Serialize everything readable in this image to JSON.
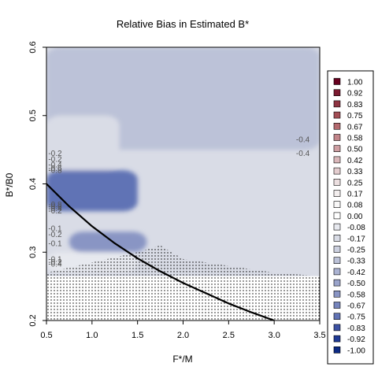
{
  "chart_data": {
    "type": "heatmap",
    "title": "Relative Bias in Estimated B*",
    "xlabel": "F*/M",
    "ylabel": "B*/B0",
    "xlim": [
      0.5,
      3.5
    ],
    "ylim": [
      0.2,
      0.6
    ],
    "x_ticks": [
      "0.5",
      "1.0",
      "1.5",
      "2.0",
      "2.5",
      "3.0",
      "3.5"
    ],
    "y_ticks": [
      "0.2",
      "0.3",
      "0.4",
      "0.5",
      "0.6"
    ],
    "grid": false,
    "legend_position": "right",
    "legend": [
      {
        "label": "1.00",
        "color": "#67001f"
      },
      {
        "label": "0.92",
        "color": "#7b1a30"
      },
      {
        "label": "0.83",
        "color": "#8f3442"
      },
      {
        "label": "0.75",
        "color": "#a34e55"
      },
      {
        "label": "0.67",
        "color": "#b46a6f"
      },
      {
        "label": "0.58",
        "color": "#c2858a"
      },
      {
        "label": "0.50",
        "color": "#cf9fa3"
      },
      {
        "label": "0.42",
        "color": "#dab7ba"
      },
      {
        "label": "0.33",
        "color": "#e4cdcf"
      },
      {
        "label": "0.25",
        "color": "#ecdfe0"
      },
      {
        "label": "0.17",
        "color": "#f3eeee"
      },
      {
        "label": "0.08",
        "color": "#f9f8f8"
      },
      {
        "label": "0.00",
        "color": "#ffffff"
      },
      {
        "label": "-0.08",
        "color": "#e7e9ef"
      },
      {
        "label": "-0.17",
        "color": "#d9dce6"
      },
      {
        "label": "-0.25",
        "color": "#ccd0df"
      },
      {
        "label": "-0.33",
        "color": "#bcc2d8"
      },
      {
        "label": "-0.42",
        "color": "#abb3d2"
      },
      {
        "label": "-0.50",
        "color": "#9aa4cb"
      },
      {
        "label": "-0.58",
        "color": "#8995c4"
      },
      {
        "label": "-0.67",
        "color": "#7685bd"
      },
      {
        "label": "-0.75",
        "color": "#6173b5"
      },
      {
        "label": "-0.83",
        "color": "#3d52a4"
      },
      {
        "label": "-0.92",
        "color": "#1f3a95"
      },
      {
        "label": "-1.00",
        "color": "#0c2a83"
      }
    ],
    "contour_labels": [
      {
        "text": "-0.2",
        "x": 0.52,
        "y": 0.441
      },
      {
        "text": "-0.2",
        "x": 0.52,
        "y": 0.432
      },
      {
        "text": "-0.4",
        "x": 0.52,
        "y": 0.424
      },
      {
        "text": "-0.6",
        "x": 0.52,
        "y": 0.419
      },
      {
        "text": "-0.8",
        "x": 0.52,
        "y": 0.416
      },
      {
        "text": "-0.8",
        "x": 0.52,
        "y": 0.366
      },
      {
        "text": "-0.6",
        "x": 0.52,
        "y": 0.363
      },
      {
        "text": "-0.4",
        "x": 0.52,
        "y": 0.36
      },
      {
        "text": "-0.2",
        "x": 0.52,
        "y": 0.357
      },
      {
        "text": "-0.1",
        "x": 0.52,
        "y": 0.331
      },
      {
        "text": "-0.2",
        "x": 0.52,
        "y": 0.322
      },
      {
        "text": "-0.1",
        "x": 0.52,
        "y": 0.309
      },
      {
        "text": "-0.1",
        "x": 0.52,
        "y": 0.286
      },
      {
        "text": "-0.2",
        "x": 0.52,
        "y": 0.282
      },
      {
        "text": "-0.4",
        "x": 0.52,
        "y": 0.279
      },
      {
        "text": "-0.4",
        "x": 3.24,
        "y": 0.461
      },
      {
        "text": "-0.4",
        "x": 3.24,
        "y": 0.441
      }
    ],
    "regions": [
      {
        "bias": -0.33,
        "x": [
          0.5,
          3.5
        ],
        "y": [
          0.45,
          0.6
        ]
      },
      {
        "bias": -0.17,
        "x": [
          0.5,
          1.3
        ],
        "y": [
          0.42,
          0.5
        ]
      },
      {
        "bias": -0.75,
        "x": [
          0.5,
          1.5
        ],
        "y": [
          0.36,
          0.42
        ]
      },
      {
        "bias": -0.58,
        "x": [
          0.75,
          1.6
        ],
        "y": [
          0.3,
          0.33
        ]
      },
      {
        "bias": -0.08,
        "x": [
          0.5,
          1.5
        ],
        "y": [
          0.27,
          0.3
        ]
      }
    ],
    "curve": {
      "x": [
        0.5,
        0.75,
        1.0,
        1.25,
        1.5,
        1.75,
        2.0,
        2.25,
        2.5,
        2.75,
        3.0
      ],
      "y": [
        0.4,
        0.367,
        0.338,
        0.313,
        0.291,
        0.272,
        0.255,
        0.24,
        0.225,
        0.212,
        0.2
      ]
    },
    "stippled_region": {
      "x": [
        0.5,
        1.5,
        1.75,
        2.0,
        2.5,
        3.0,
        3.5
      ],
      "y_top": [
        0.27,
        0.3,
        0.31,
        0.29,
        0.28,
        0.27,
        0.265
      ]
    }
  }
}
